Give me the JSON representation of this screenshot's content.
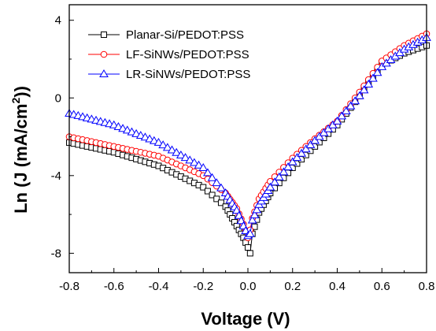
{
  "chart_data": {
    "type": "scatter",
    "xlabel": "Voltage (V)",
    "ylabel": "Ln (J (mA/cm²))",
    "ylabel_main": "Ln (J (mA/cm",
    "ylabel_sup": "2",
    "ylabel_tail": "))",
    "xlim": [
      -0.8,
      0.8
    ],
    "ylim": [
      -9,
      4.8
    ],
    "xticks": [
      -0.8,
      -0.6,
      -0.4,
      -0.2,
      0.0,
      0.2,
      0.4,
      0.6,
      0.8
    ],
    "xtick_labels": [
      "-0.8",
      "-0.6",
      "-0.4",
      "-0.2",
      "0.0",
      "0.2",
      "0.4",
      "0.6",
      "0.8"
    ],
    "yticks": [
      4,
      0,
      -4,
      -8
    ],
    "ytick_labels": [
      "4",
      "0",
      "-4",
      "-8"
    ],
    "legend_position": "top-left",
    "grid": false,
    "series": [
      {
        "name": "Planar-Si/PEDOT:PSS",
        "color": "#000000",
        "marker": "square",
        "anchors": [
          [
            -0.8,
            -2.3
          ],
          [
            -0.6,
            -2.8
          ],
          [
            -0.4,
            -3.5
          ],
          [
            -0.2,
            -4.6
          ],
          [
            -0.1,
            -5.6
          ],
          [
            -0.05,
            -6.6
          ],
          [
            -0.02,
            -7.2
          ],
          [
            0.0,
            -7.7
          ],
          [
            0.01,
            -8.0
          ],
          [
            0.02,
            -7.0
          ],
          [
            0.05,
            -5.9
          ],
          [
            0.1,
            -4.9
          ],
          [
            0.2,
            -3.6
          ],
          [
            0.3,
            -2.5
          ],
          [
            0.4,
            -1.4
          ],
          [
            0.5,
            0.1
          ],
          [
            0.6,
            1.7
          ],
          [
            0.7,
            2.3
          ],
          [
            0.8,
            2.7
          ]
        ]
      },
      {
        "name": "LF-SiNWs/PEDOT:PSS",
        "color": "#ff0000",
        "marker": "circle",
        "anchors": [
          [
            -0.8,
            -2.0
          ],
          [
            -0.6,
            -2.5
          ],
          [
            -0.4,
            -3.0
          ],
          [
            -0.2,
            -4.0
          ],
          [
            -0.1,
            -4.9
          ],
          [
            -0.05,
            -5.7
          ],
          [
            -0.02,
            -6.5
          ],
          [
            0.0,
            -7.2
          ],
          [
            0.01,
            -6.8
          ],
          [
            0.02,
            -6.2
          ],
          [
            0.05,
            -5.2
          ],
          [
            0.1,
            -4.3
          ],
          [
            0.2,
            -3.1
          ],
          [
            0.3,
            -2.1
          ],
          [
            0.4,
            -1.2
          ],
          [
            0.5,
            0.3
          ],
          [
            0.6,
            1.9
          ],
          [
            0.7,
            2.7
          ],
          [
            0.8,
            3.3
          ]
        ]
      },
      {
        "name": "LR-SiNWs/PEDOT:PSS",
        "color": "#0000ff",
        "marker": "triangle",
        "anchors": [
          [
            -0.8,
            -0.8
          ],
          [
            -0.6,
            -1.4
          ],
          [
            -0.4,
            -2.3
          ],
          [
            -0.2,
            -3.6
          ],
          [
            -0.1,
            -4.9
          ],
          [
            -0.05,
            -5.8
          ],
          [
            -0.02,
            -6.6
          ],
          [
            0.0,
            -7.1
          ],
          [
            0.01,
            -7.0
          ],
          [
            0.02,
            -6.3
          ],
          [
            0.05,
            -5.5
          ],
          [
            0.1,
            -4.6
          ],
          [
            0.2,
            -3.3
          ],
          [
            0.3,
            -2.2
          ],
          [
            0.4,
            -1.2
          ],
          [
            0.5,
            0.1
          ],
          [
            0.6,
            1.6
          ],
          [
            0.7,
            2.5
          ],
          [
            0.8,
            3.1
          ]
        ]
      }
    ]
  }
}
